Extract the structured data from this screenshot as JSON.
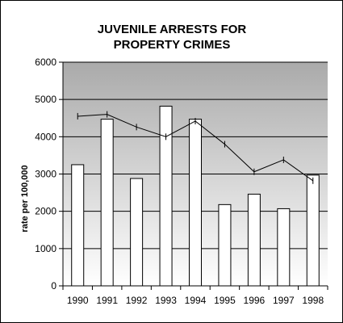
{
  "chart_data": {
    "type": "bar",
    "title_lines": [
      "JUVENILE ARRESTS FOR",
      "PROPERTY CRIMES"
    ],
    "xlabel": "",
    "ylabel": "rate per 100,000",
    "ylim": [
      0,
      6000
    ],
    "y_ticks": [
      0,
      1000,
      2000,
      3000,
      4000,
      5000,
      6000
    ],
    "grid": true,
    "categories": [
      "1990",
      "1991",
      "1992",
      "1993",
      "1994",
      "1995",
      "1996",
      "1997",
      "1998"
    ],
    "series": [
      {
        "type": "bar",
        "values": [
          3250,
          4470,
          2880,
          4820,
          4470,
          2180,
          2460,
          2070,
          2970
        ]
      },
      {
        "type": "line",
        "values": [
          4550,
          4600,
          4260,
          4000,
          4420,
          3800,
          3060,
          3380,
          2820
        ]
      }
    ],
    "colors": {
      "bar_fill": "#ffffff",
      "bar_stroke": "#000000",
      "line": "#000000",
      "background_top": "#aaaaaa",
      "background_bottom": "#ffffff"
    }
  }
}
